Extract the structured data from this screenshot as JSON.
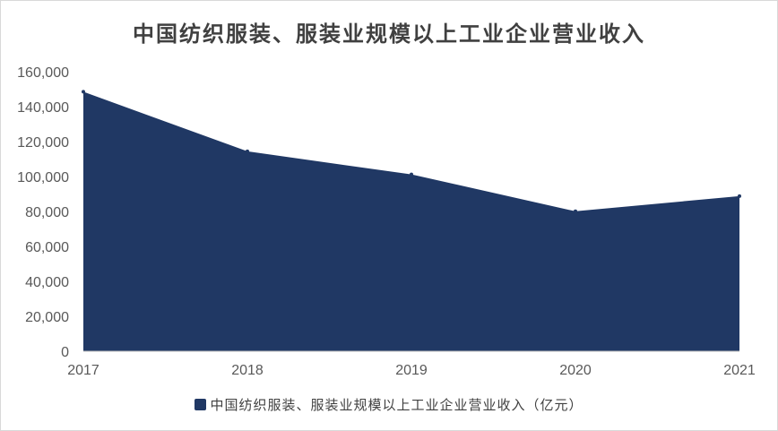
{
  "chart_data": {
    "type": "area",
    "title": "中国纺织服装、服装业规模以上工业企业营业收入",
    "categories": [
      "2017",
      "2018",
      "2019",
      "2020",
      "2021"
    ],
    "series": [
      {
        "name": "中国纺织服装、服装业规模以上工业企业营业收入（亿元）",
        "values": [
          148500,
          114400,
          101200,
          80100,
          88800
        ],
        "color": "#203864"
      }
    ],
    "ylim": [
      0,
      160000
    ],
    "yticks": [
      0,
      20000,
      40000,
      60000,
      80000,
      100000,
      120000,
      140000,
      160000
    ],
    "ytick_labels": [
      "0",
      "20,000",
      "40,000",
      "60,000",
      "80,000",
      "100,000",
      "120,000",
      "140,000",
      "160,000"
    ],
    "grid": false,
    "legend_position": "bottom"
  }
}
